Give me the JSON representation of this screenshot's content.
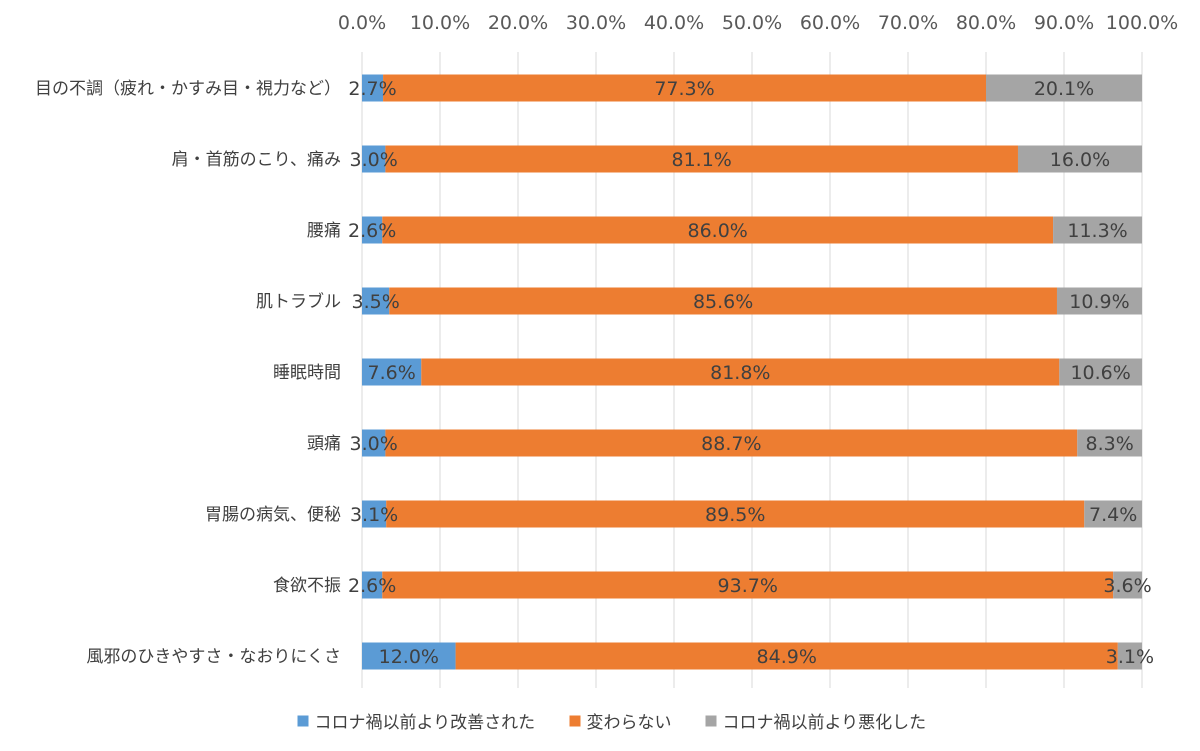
{
  "chart_data": {
    "type": "bar",
    "orientation": "horizontal",
    "stacked": true,
    "percent_stacked": true,
    "x_axis_position": "top",
    "xlim": [
      0,
      100
    ],
    "x_ticks": [
      "0.0%",
      "10.0%",
      "20.0%",
      "30.0%",
      "40.0%",
      "50.0%",
      "60.0%",
      "70.0%",
      "80.0%",
      "90.0%",
      "100.0%"
    ],
    "grid": true,
    "legend_position": "bottom",
    "categories": [
      "目の不調（疲れ・かすみ目・視力など）",
      "肩・首筋のこり、痛み",
      "腰痛",
      "肌トラブル",
      "睡眠時間",
      "頭痛",
      "胃腸の病気、便秘",
      "食欲不振",
      "風邪のひきやすさ・なおりにくさ"
    ],
    "series": [
      {
        "name": "コロナ禍以前より改善された",
        "color": "#5b9bd5",
        "values": [
          2.7,
          3.0,
          2.6,
          3.5,
          7.6,
          3.0,
          3.1,
          2.6,
          12.0
        ],
        "labels": [
          "2.7%",
          "3.0%",
          "2.6%",
          "3.5%",
          "7.6%",
          "3.0%",
          "3.1%",
          "2.6%",
          "12.0%"
        ]
      },
      {
        "name": "変わらない",
        "color": "#ed7d31",
        "values": [
          77.3,
          81.1,
          86.0,
          85.6,
          81.8,
          88.7,
          89.5,
          93.7,
          84.9
        ],
        "labels": [
          "77.3%",
          "81.1%",
          "86.0%",
          "85.6%",
          "81.8%",
          "88.7%",
          "89.5%",
          "93.7%",
          "84.9%"
        ]
      },
      {
        "name": "コロナ禍以前より悪化した",
        "color": "#a5a5a5",
        "values": [
          20.1,
          16.0,
          11.3,
          10.9,
          10.6,
          8.3,
          7.4,
          3.6,
          3.1
        ],
        "labels": [
          "20.1%",
          "16.0%",
          "11.3%",
          "10.9%",
          "10.6%",
          "8.3%",
          "7.4%",
          "3.6%",
          "3.1%"
        ]
      }
    ]
  }
}
